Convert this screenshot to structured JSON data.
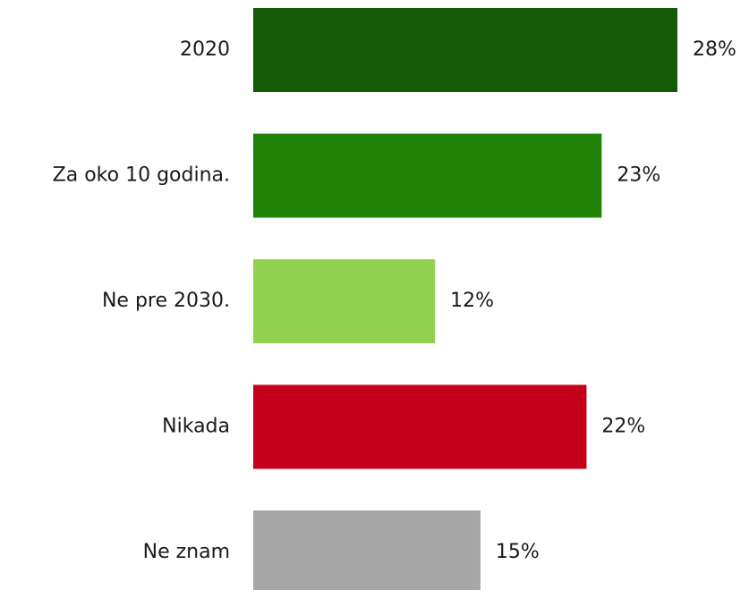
{
  "chart_data": {
    "type": "bar",
    "orientation": "horizontal",
    "categories": [
      "2020",
      "Za oko 10 godina.",
      "Ne pre 2030.",
      "Nikada",
      "Ne znam"
    ],
    "values": [
      28,
      23,
      12,
      22,
      15
    ],
    "value_labels": [
      "28%",
      "23%",
      "12%",
      "22%",
      "15%"
    ],
    "colors": [
      "#155a06",
      "#218406",
      "#92d150",
      "#c5001a",
      "#a6a6a6"
    ]
  }
}
